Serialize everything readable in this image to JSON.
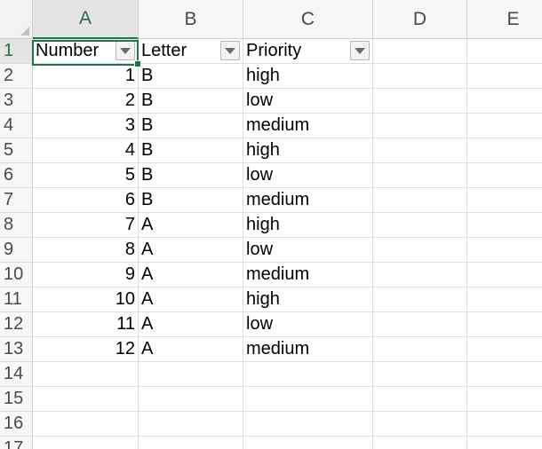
{
  "columns": [
    "A",
    "B",
    "C",
    "D",
    "E"
  ],
  "rows": [
    "1",
    "2",
    "3",
    "4",
    "5",
    "6",
    "7",
    "8",
    "9",
    "10",
    "11",
    "12",
    "13",
    "14",
    "15",
    "16",
    "17"
  ],
  "header": {
    "number": "Number",
    "letter": "Letter",
    "priority": "Priority"
  },
  "data": [
    {
      "number": "1",
      "letter": "B",
      "priority": "high"
    },
    {
      "number": "2",
      "letter": "B",
      "priority": "low"
    },
    {
      "number": "3",
      "letter": "B",
      "priority": "medium"
    },
    {
      "number": "4",
      "letter": "B",
      "priority": "high"
    },
    {
      "number": "5",
      "letter": "B",
      "priority": "low"
    },
    {
      "number": "6",
      "letter": "B",
      "priority": "medium"
    },
    {
      "number": "7",
      "letter": "A",
      "priority": "high"
    },
    {
      "number": "8",
      "letter": "A",
      "priority": "low"
    },
    {
      "number": "9",
      "letter": "A",
      "priority": "medium"
    },
    {
      "number": "10",
      "letter": "A",
      "priority": "high"
    },
    {
      "number": "11",
      "letter": "A",
      "priority": "low"
    },
    {
      "number": "12",
      "letter": "A",
      "priority": "medium"
    }
  ],
  "selected_cell": "A1",
  "colors": {
    "accent": "#217346",
    "header_bg": "#f7f7f7",
    "grid": "#dedede"
  },
  "icons": {
    "filter": "filter-dropdown-icon",
    "select_all": "select-all-corner-icon"
  }
}
